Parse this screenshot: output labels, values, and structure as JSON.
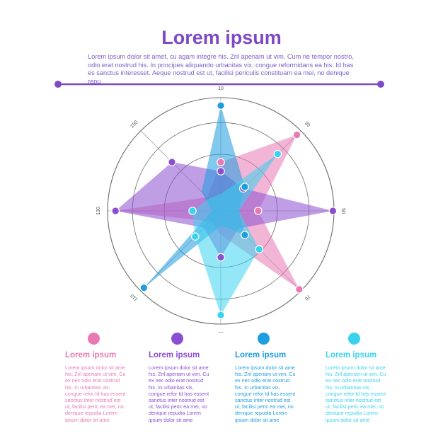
{
  "header": {
    "title": "Lorem ipsum",
    "intro": "Lorem ipsum dolor sit amet, cu agam integre his. Zril aperiam ut vim. Cum ne tempor nostro, odio erat nostrud his. In principes aliquando urbanitas vix, congue reformidans ea his. Id has es sanctus interesset. Aeque nostrud est ut, facilisi periculis constituam ea mei, no denique repu"
  },
  "colors": {
    "title": "#7e49c5",
    "divider": "#7e49c5",
    "pink": "#e879b4",
    "purple": "#8a4fd0",
    "blue": "#1e9de0",
    "cyan": "#3ad3ee"
  },
  "chart_data": {
    "type": "radar",
    "axis_labels": [
      "10",
      "30",
      "50",
      "70",
      "90",
      "110",
      "130",
      "150"
    ],
    "series": [
      {
        "color": "#e879b4",
        "values": [
          4.3,
          9.5,
          3.3,
          9.8,
          2.1,
          1.3,
          9.3,
          1.7
        ]
      },
      {
        "color": "#8a4fd0",
        "values": [
          3.5,
          2.8,
          9.9,
          2.2,
          4.1,
          2.1,
          9.3,
          6.1
        ]
      },
      {
        "color": "#1e9de0",
        "values": [
          9.3,
          3.0,
          1.6,
          3.0,
          1.3,
          9.6,
          0.8,
          2.4
        ]
      },
      {
        "color": "#3ad3ee",
        "values": [
          1.5,
          7.1,
          1.6,
          4.8,
          9.2,
          3.2,
          2.5,
          1.5
        ]
      }
    ]
  },
  "legend": [
    {
      "title": "Lorem ipsum",
      "color": "#e879b4",
      "text": "Lorem ipsum dolor sit ame his. Zril aperiam ut vim. Cu ex nec odio erat nostrud his. In urbanitas vix, congue refor Id has essent sanctus inter nostrud est ut, facilisi peric ea mei, no denique repudia Lorem ipsum dolor sit ame"
    },
    {
      "title": "Lorem ipsum",
      "color": "#8a4fd0",
      "text": "Lorem ipsum dolor sit ame his. Zril aperiam ut vim. Cu ex nec odio erat nostrud his. In urbanitas vix, congue refor Id has essent sanctus inter nostrud est ut, facilisi peric ea mei, no denique repudia Lorem ipsum dolor sit ame"
    },
    {
      "title": "Lorem ipsum",
      "color": "#1e9de0",
      "text": "Lorem ipsum dolor sit ame his. Zril aperiam ut vim. Cu ex nec odio erat nostrud his. In urbanitas vix, congue refor Id has essent sanctus inter nostrud est ut, facilisi peric ea mei, no denique repudia Lorem ipsum dolor sit ame"
    },
    {
      "title": "Lorem ipsum",
      "color": "#3ad3ee",
      "text": "Lorem ipsum dolor sit ame his. Zril aperiam ut vim. Cu ex nec odio erat nostrud his. In urbanitas vix, congue refor Id has essent sanctus inter nostrud est ut, facilisi peric ea mei, no denique repudia Lorem ipsum dolor sit ame"
    }
  ]
}
